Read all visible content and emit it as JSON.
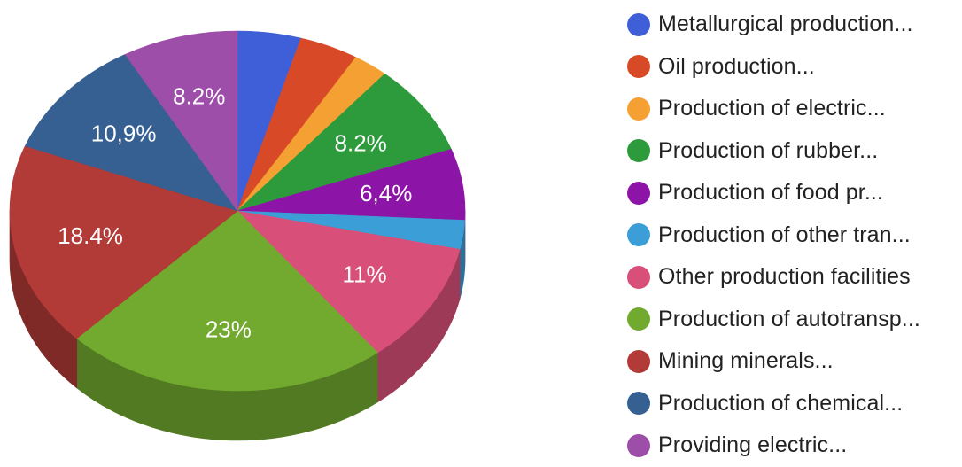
{
  "chart_data": {
    "type": "pie",
    "style": "3d",
    "legend_position": "right",
    "slices": [
      {
        "name": "Metallurgical production...",
        "value": 4.5,
        "label": "",
        "color": "#3f5fd9"
      },
      {
        "name": "Oil production...",
        "value": 4.2,
        "label": "",
        "color": "#d84a27"
      },
      {
        "name": "Production of electric...",
        "value": 2.5,
        "label": "",
        "color": "#f5a033"
      },
      {
        "name": "Production of rubber...",
        "value": 8.2,
        "label": "8.2%",
        "color": "#2d9a3c"
      },
      {
        "name": "Production of food pr...",
        "value": 6.4,
        "label": "6,4%",
        "color": "#8c14a6"
      },
      {
        "name": "Production of other tran...",
        "value": 2.6,
        "label": "",
        "color": "#3b9ed6"
      },
      {
        "name": "Other production facilities",
        "value": 11,
        "label": "11%",
        "color": "#d8507a"
      },
      {
        "name": "Production of autotransp...",
        "value": 23,
        "label": "23%",
        "color": "#72aa2f"
      },
      {
        "name": "Mining minerals...",
        "value": 18.4,
        "label": "18.4%",
        "color": "#b23a37"
      },
      {
        "name": "Production of chemical...",
        "value": 10.9,
        "label": "10,9%",
        "color": "#365f92"
      },
      {
        "name": "Providing electric...",
        "value": 8.2,
        "label": "8.2%",
        "color": "#9c4ea8"
      }
    ]
  }
}
